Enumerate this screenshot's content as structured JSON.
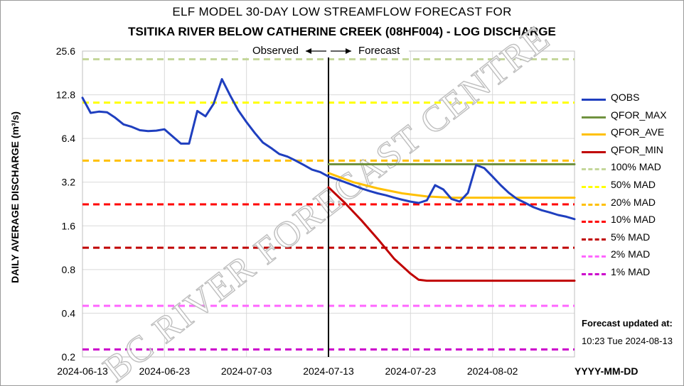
{
  "title_line1": "ELF MODEL 30-DAY LOW STREAMFLOW FORECAST FOR",
  "title_line2": "TSITIKA RIVER BELOW CATHERINE CREEK (08HF004) - LOG DISCHARGE",
  "ylabel": "DAILY AVERAGE DISCHARGE (m³/s)",
  "xlabel": "YYYY-MM-DD",
  "update_label": "Forecast updated at:",
  "update_time": "10:23 Tue 2024-08-13",
  "watermark": "BC RIVER FORECAST CENTRE",
  "chart_data": {
    "type": "line",
    "title": "ELF MODEL 30-DAY LOW STREAMFLOW FORECAST FOR TSITIKA RIVER BELOW CATHERINE CREEK (08HF004) - LOG DISCHARGE",
    "xlabel": "YYYY-MM-DD",
    "ylabel": "DAILY AVERAGE DISCHARGE (m³/s)",
    "yscale": "log2",
    "ylim": [
      0.2,
      25.6
    ],
    "yticks": [
      "0.2",
      "0.4",
      "0.8",
      "1.6",
      "3.2",
      "6.4",
      "12.8",
      "25.6"
    ],
    "xlim": [
      "2024-06-13",
      "2024-08-12"
    ],
    "xticks": [
      "2024-06-13",
      "2024-06-23",
      "2024-07-03",
      "2024-07-13",
      "2024-07-23",
      "2024-08-02"
    ],
    "grid": true,
    "legend_position": "right",
    "forecast_start": "2024-07-13",
    "annotations": {
      "observed": "Observed",
      "forecast": "Forecast"
    },
    "series": [
      {
        "name": "QOBS",
        "color": "#1f3fbf",
        "style": "solid",
        "x": [
          "2024-06-13",
          "2024-06-14",
          "2024-06-15",
          "2024-06-16",
          "2024-06-17",
          "2024-06-18",
          "2024-06-19",
          "2024-06-20",
          "2024-06-21",
          "2024-06-22",
          "2024-06-23",
          "2024-06-24",
          "2024-06-25",
          "2024-06-26",
          "2024-06-27",
          "2024-06-28",
          "2024-06-29",
          "2024-06-30",
          "2024-07-01",
          "2024-07-02",
          "2024-07-03",
          "2024-07-04",
          "2024-07-05",
          "2024-07-06",
          "2024-07-07",
          "2024-07-08",
          "2024-07-09",
          "2024-07-10",
          "2024-07-11",
          "2024-07-12",
          "2024-07-13",
          "2024-07-14",
          "2024-07-15",
          "2024-07-16",
          "2024-07-17",
          "2024-07-18",
          "2024-07-19",
          "2024-07-20",
          "2024-07-21",
          "2024-07-22",
          "2024-07-23",
          "2024-07-24",
          "2024-07-25",
          "2024-07-26",
          "2024-07-27",
          "2024-07-28",
          "2024-07-29",
          "2024-07-30",
          "2024-07-31",
          "2024-08-01",
          "2024-08-02",
          "2024-08-03",
          "2024-08-04",
          "2024-08-05",
          "2024-08-06",
          "2024-08-07",
          "2024-08-08",
          "2024-08-09",
          "2024-08-10",
          "2024-08-11",
          "2024-08-12"
        ],
        "values": [
          12.2,
          9.6,
          9.8,
          9.7,
          8.9,
          8.0,
          7.7,
          7.3,
          7.2,
          7.25,
          7.4,
          6.6,
          5.9,
          5.9,
          9.9,
          9.1,
          11.1,
          16.4,
          12.7,
          10.0,
          8.3,
          7.0,
          6.0,
          5.5,
          5.0,
          4.8,
          4.5,
          4.2,
          3.9,
          3.75,
          3.5,
          3.35,
          3.2,
          3.05,
          2.9,
          2.78,
          2.68,
          2.6,
          2.5,
          2.42,
          2.35,
          2.3,
          2.4,
          3.05,
          2.85,
          2.45,
          2.35,
          2.7,
          4.2,
          4.0,
          3.5,
          3.05,
          2.7,
          2.45,
          2.3,
          2.15,
          2.05,
          1.98,
          1.9,
          1.85,
          1.78
        ]
      },
      {
        "name": "QFOR_MAX",
        "color": "#70923f",
        "style": "solid",
        "x": [
          "2024-07-13",
          "2024-08-12"
        ],
        "values": [
          4.25,
          4.25
        ]
      },
      {
        "name": "QFOR_AVE",
        "color": "#ffc000",
        "style": "solid",
        "x": [
          "2024-07-13",
          "2024-07-16",
          "2024-07-19",
          "2024-07-22",
          "2024-07-25",
          "2024-07-28",
          "2024-08-12"
        ],
        "values": [
          3.7,
          3.2,
          2.9,
          2.68,
          2.55,
          2.5,
          2.5
        ]
      },
      {
        "name": "QFOR_MIN",
        "color": "#c00000",
        "style": "solid",
        "x": [
          "2024-07-13",
          "2024-07-15",
          "2024-07-17",
          "2024-07-19",
          "2024-07-21",
          "2024-07-23",
          "2024-07-24",
          "2024-07-25",
          "2024-08-12"
        ],
        "values": [
          2.95,
          2.3,
          1.75,
          1.3,
          0.95,
          0.75,
          0.68,
          0.67,
          0.67
        ]
      },
      {
        "name": "100% MAD",
        "color": "#c4d79b",
        "style": "dashed",
        "values": [
          22.5,
          22.5
        ]
      },
      {
        "name": "50% MAD",
        "color": "#ffff00",
        "style": "dashed",
        "values": [
          11.3,
          11.3
        ]
      },
      {
        "name": "20% MAD",
        "color": "#ffc000",
        "style": "dashed",
        "values": [
          4.5,
          4.5
        ]
      },
      {
        "name": "10% MAD",
        "color": "#ff0000",
        "style": "dashed",
        "values": [
          2.25,
          2.25
        ]
      },
      {
        "name": "5% MAD",
        "color": "#c00000",
        "style": "dashed",
        "values": [
          1.13,
          1.13
        ]
      },
      {
        "name": "2% MAD",
        "color": "#ff66ff",
        "style": "dashed",
        "values": [
          0.45,
          0.45
        ]
      },
      {
        "name": "1% MAD",
        "color": "#cc00cc",
        "style": "dashed",
        "values": [
          0.225,
          0.225
        ]
      }
    ]
  }
}
